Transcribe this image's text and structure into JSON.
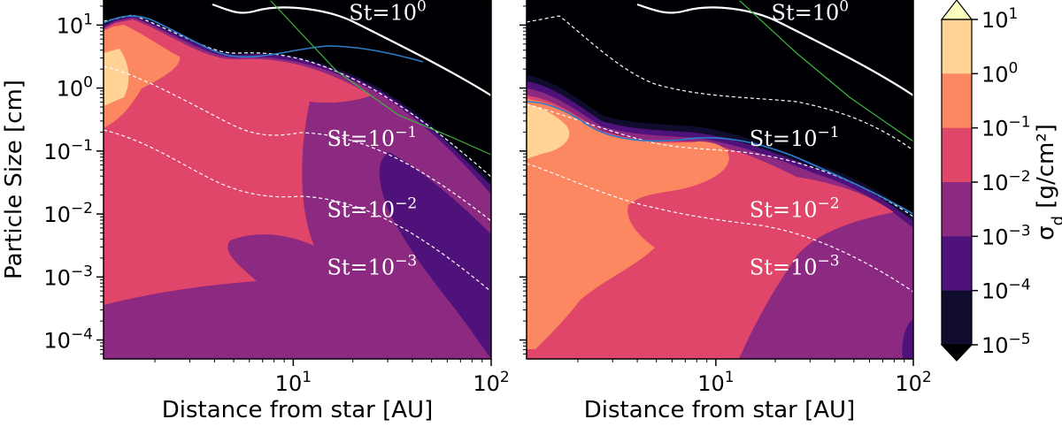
{
  "chart_data": {
    "type": "contourf",
    "panels": [
      {
        "name": "left",
        "xlabel": "Distance from star [AU]",
        "ylabel": "Particle Size [cm]",
        "xscale": "log",
        "yscale": "log",
        "xlim": [
          1.1,
          100
        ],
        "ylim": [
          5e-05,
          25
        ],
        "x_ticks": [
          {
            "base": "10",
            "exp": "1",
            "value": 10
          },
          {
            "base": "10",
            "exp": "2",
            "value": 100
          }
        ],
        "y_ticks": [
          {
            "base": "10",
            "exp": "1",
            "value": 10
          },
          {
            "base": "10",
            "exp": "0",
            "value": 1
          },
          {
            "base": "10",
            "exp": "−1",
            "value": 0.1
          },
          {
            "base": "10",
            "exp": "−2",
            "value": 0.01
          },
          {
            "base": "10",
            "exp": "−3",
            "value": 0.001
          },
          {
            "base": "10",
            "exp": "−4",
            "value": 0.0001
          }
        ],
        "stokes_labels": [
          {
            "text": "St=10",
            "exp": "0",
            "x": 30,
            "y": 12
          },
          {
            "text": "St=10",
            "exp": "−1",
            "x": 25,
            "y": 0.12
          },
          {
            "text": "St=10",
            "exp": "−2",
            "x": 25,
            "y": 0.009
          },
          {
            "text": "St=10",
            "exp": "−3",
            "x": 25,
            "y": 0.0011
          }
        ]
      },
      {
        "name": "right",
        "xlabel": "Distance from star [AU]",
        "xscale": "log",
        "yscale": "log",
        "xlim": [
          1.1,
          100
        ],
        "ylim": [
          5e-05,
          25
        ],
        "x_ticks": [
          {
            "base": "10",
            "exp": "1",
            "value": 10
          },
          {
            "base": "10",
            "exp": "2",
            "value": 100
          }
        ],
        "stokes_labels": [
          {
            "text": "St=10",
            "exp": "0",
            "x": 30,
            "y": 12
          },
          {
            "text": "St=10",
            "exp": "−1",
            "x": 25,
            "y": 0.12
          },
          {
            "text": "St=10",
            "exp": "−2",
            "x": 25,
            "y": 0.009
          },
          {
            "text": "St=10",
            "exp": "−3",
            "x": 25,
            "y": 0.0011
          }
        ]
      }
    ],
    "colorbar": {
      "label": "σ",
      "label_sub": "d",
      "label_unit": " [g/cm²]",
      "scale": "log",
      "extend": "both",
      "levels": [
        {
          "base": "10",
          "exp": "1",
          "value": 10
        },
        {
          "base": "10",
          "exp": "0",
          "value": 1
        },
        {
          "base": "10",
          "exp": "−1",
          "value": 0.1
        },
        {
          "base": "10",
          "exp": "−2",
          "value": 0.01
        },
        {
          "base": "10",
          "exp": "−3",
          "value": 0.001
        },
        {
          "base": "10",
          "exp": "−4",
          "value": 0.0001
        },
        {
          "base": "10",
          "exp": "−5",
          "value": 1e-05
        }
      ],
      "colors": [
        "#fcfdbf",
        "#fed395",
        "#fb8861",
        "#e0466a",
        "#8c2981",
        "#4f127b",
        "#0f0c2d",
        "#000004"
      ]
    }
  }
}
